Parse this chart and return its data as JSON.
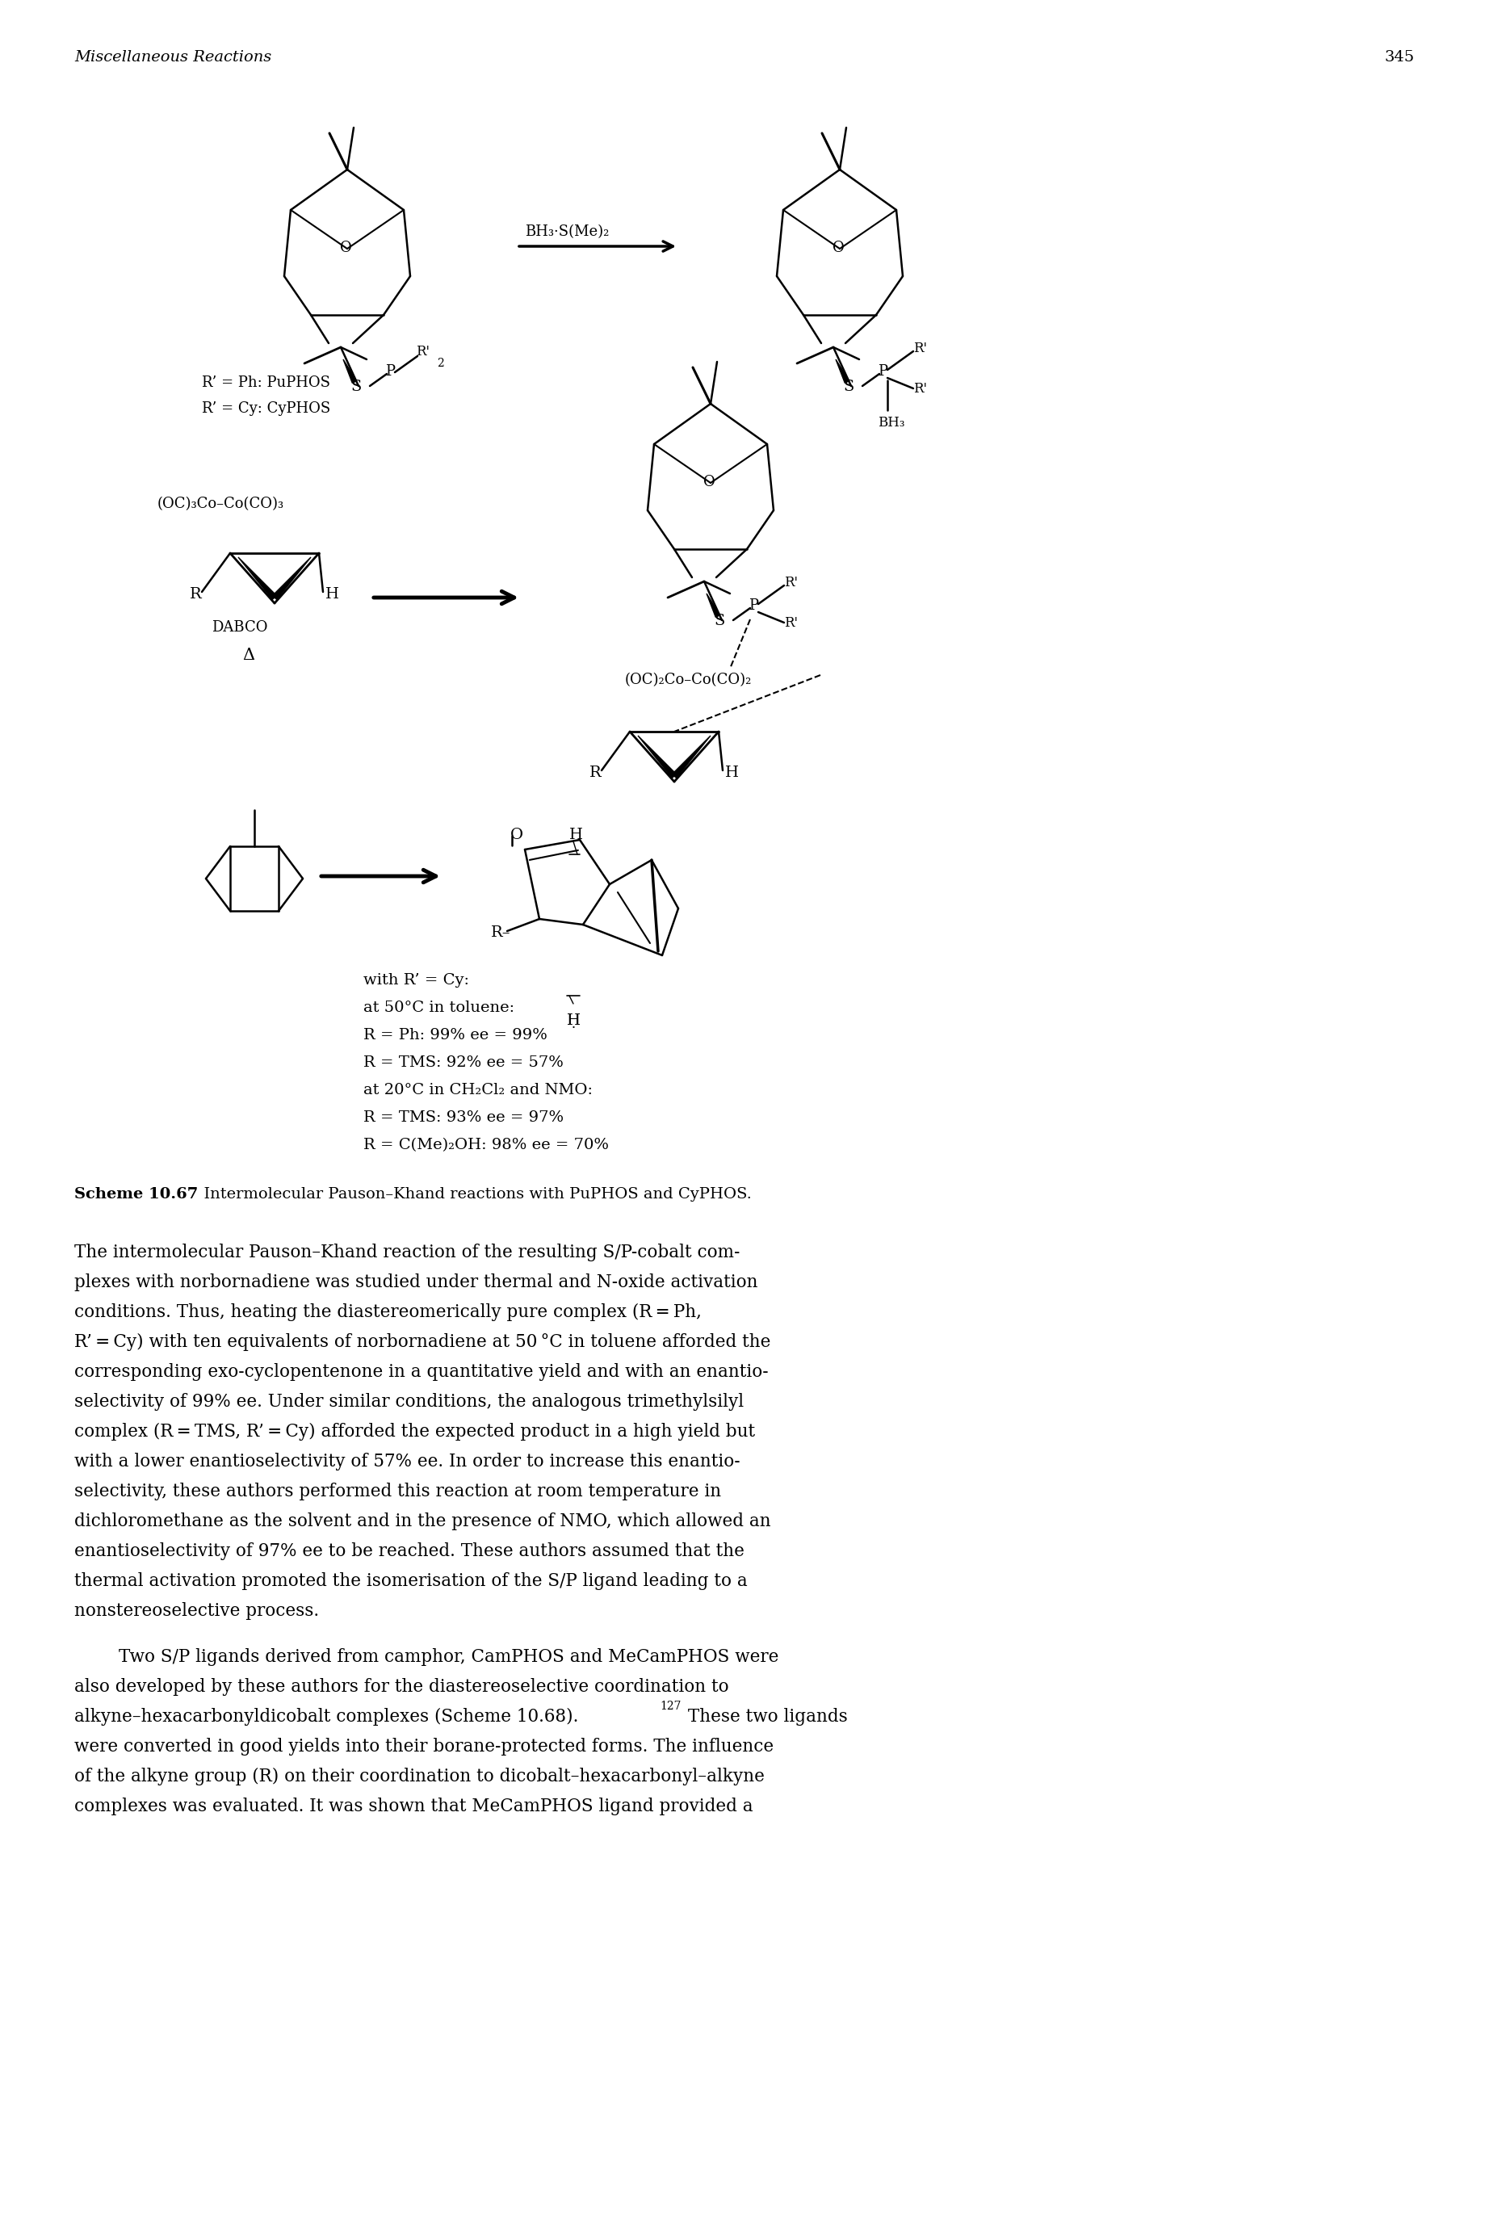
{
  "page_number": "345",
  "header_italic": "Miscellaneous Reactions",
  "scheme_label": "Scheme 10.67",
  "scheme_desc": "  Intermolecular Pauson–Khand reactions with PuPHOS and CyPHOS.",
  "bh3_reagent": "BH₃·S(Me)₂",
  "labels_R": [
    "R’ = Ph: PuPHOS",
    "R’ = Cy: CyPHOS"
  ],
  "co_complex_left": "(OC)₃Co–Co(CO)₃",
  "dabco": "DABCO",
  "delta": "Δ",
  "co_complex_right": "(OC)₂Co–Co(CO)₂",
  "conditions": [
    "with R’ = Cy:",
    "at 50°C in toluene:",
    "R = Ph: 99% ee = 99%",
    "R = TMS: 92% ee = 57%",
    "at 20°C in CH₂Cl₂ and NMO:",
    "R = TMS: 93% ee = 97%",
    "R = C(Me)₂OH: 98% ee = 70%"
  ],
  "body_para1": [
    "The intermolecular Pauson–Khand reaction of the resulting S/P-cobalt com-",
    "plexes with norbornadiene was studied under thermal and N-oxide activation",
    "conditions. Thus, heating the diastereomerically pure complex (R = Ph,",
    "R’ = Cy) with ten equivalents of norbornadiene at 50 °C in toluene afforded the",
    "corresponding exo-cyclopentenone in a quantitative yield and with an enantio-",
    "selectivity of 99% ee. Under similar conditions, the analogous trimethylsilyl",
    "complex (R = TMS, R’ = Cy) afforded the expected product in a high yield but",
    "with a lower enantioselectivity of 57% ee. In order to increase this enantio-",
    "selectivity, these authors performed this reaction at room temperature in",
    "dichloromethane as the solvent and in the presence of NMO, which allowed an",
    "enantioselectivity of 97% ee to be reached. These authors assumed that the",
    "thermal activation promoted the isomerisation of the S/P ligand leading to a",
    "nonstereoselective process."
  ],
  "body_para2_line1": "Two S/P ligands derived from camphor, CamPHOS and MeCamPHOS were",
  "body_para2_rest": [
    "also developed by these authors for the diastereoselective coordination to",
    "alkyne–hexacarbonyldicobalt complexes (Scheme 10.68).",
    "were converted in good yields into their borane-protected forms. The influence",
    "of the alkyne group (R) on their coordination to dicobalt–hexacarbonyl–alkyne",
    "complexes was evaluated. It was shown that MeCamPHOS ligand provided a"
  ],
  "superscript": "127",
  "inline_after_super": " These two ligands",
  "bg_color": "#ffffff"
}
